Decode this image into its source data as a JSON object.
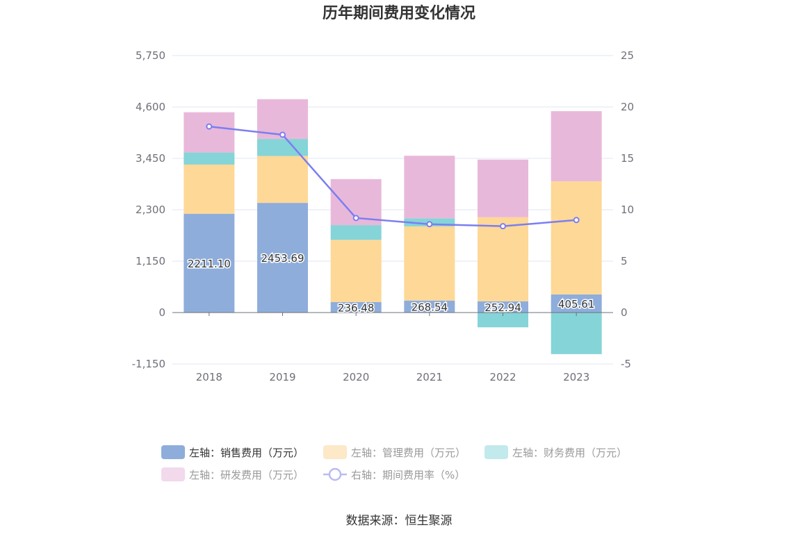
{
  "chart_data": {
    "type": "bar",
    "title": "历年期间费用变化情况",
    "categories": [
      "2018",
      "2019",
      "2020",
      "2021",
      "2022",
      "2023"
    ],
    "stacked": true,
    "left_axis": {
      "ylim": [
        -1150,
        5750
      ],
      "ticks": [
        "-1,150",
        "0",
        "1,150",
        "2,300",
        "3,450",
        "4,600",
        "5,750"
      ]
    },
    "right_axis": {
      "ylim": [
        -5,
        25
      ],
      "ticks": [
        "-5",
        "0",
        "5",
        "10",
        "15",
        "20",
        "25"
      ]
    },
    "series": [
      {
        "name": "左轴：销售费用（万元）",
        "axis": "left",
        "type": "bar",
        "color": "#8eaddb",
        "values": [
          2211.1,
          2453.69,
          236.48,
          268.54,
          252.94,
          405.61
        ],
        "labels": [
          "2211.10",
          "2453.69",
          "236.48",
          "268.54",
          "252.94",
          "405.61"
        ]
      },
      {
        "name": "左轴：管理费用（万元）",
        "axis": "left",
        "type": "bar",
        "color": "#fed897",
        "values": [
          1100,
          1050,
          1390,
          1660,
          1880,
          2530
        ]
      },
      {
        "name": "左轴：财务费用（万元）",
        "axis": "left",
        "type": "bar",
        "color": "#85d4d8",
        "values": [
          270,
          380,
          330,
          180,
          -330,
          -930
        ]
      },
      {
        "name": "左轴：研发费用（万元）",
        "axis": "left",
        "type": "bar",
        "color": "#e8b8da",
        "values": [
          900,
          890,
          1030,
          1400,
          1290,
          1570
        ]
      },
      {
        "name": "右轴：期间费用率（%）",
        "axis": "right",
        "type": "line",
        "color": "#7b7ef0",
        "values": [
          18.1,
          17.3,
          9.2,
          8.6,
          8.4,
          9.0
        ]
      }
    ],
    "grid": true,
    "legend_position": "bottom"
  },
  "source": "数据来源：恒生聚源"
}
